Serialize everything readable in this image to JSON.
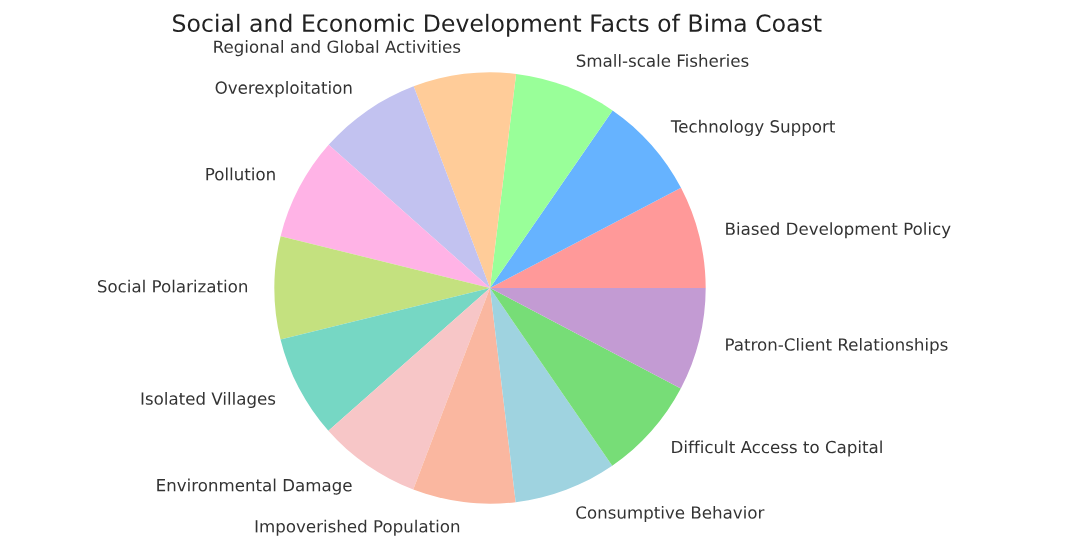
{
  "chart_data": {
    "type": "pie",
    "title": "Social and Economic Development Facts of Bima Coast",
    "categories": [
      "Biased Development Policy",
      "Technology Support",
      "Small-scale Fisheries",
      "Regional and Global Activities",
      "Overexploitation",
      "Pollution",
      "Social Polarization",
      "Isolated Villages",
      "Environmental Damage",
      "Impoverished Population",
      "Consumptive Behavior",
      "Difficult Access to Capital",
      "Patron-Client Relationships"
    ],
    "values": [
      7.69,
      7.69,
      7.69,
      7.69,
      7.69,
      7.69,
      7.69,
      7.69,
      7.69,
      7.69,
      7.69,
      7.69,
      7.72
    ],
    "colors": [
      "#ff9999",
      "#66b3ff",
      "#99ff99",
      "#ffcc99",
      "#c2c2f0",
      "#ffb3e6",
      "#c4e17f",
      "#76d7c4",
      "#f7c6c7",
      "#fab7a0",
      "#9fd3e0",
      "#77dd77",
      "#c39bd3"
    ]
  }
}
